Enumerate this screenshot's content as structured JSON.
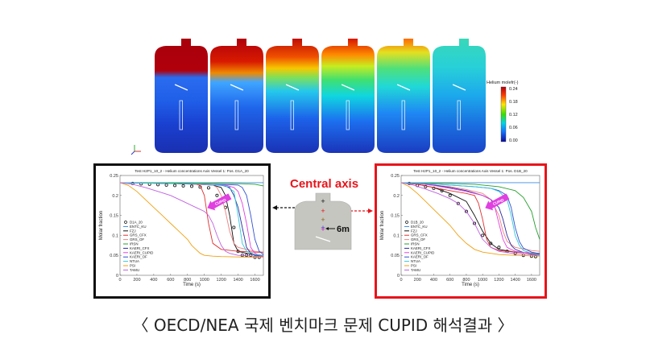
{
  "contours": {
    "count": 6,
    "colorbar": {
      "title": "Helium molefr(-)",
      "ticks": [
        "0.24",
        "0.18",
        "0.12",
        "0.06",
        "0.00"
      ],
      "colors": [
        "#b3000c",
        "#ff3b00",
        "#ffe600",
        "#38e000",
        "#00d5e6",
        "#1470ff",
        "#0b0b9c"
      ]
    }
  },
  "central_axis": {
    "title": "Central axis",
    "distance_label": "6m"
  },
  "caption": "〈 OECD/NEA 국제 벤치마크 문제 CUPID 해석결과 〉",
  "chart_data": [
    {
      "type": "line",
      "title": "Test H2P1_10_2 - Helium concentrations Axis Vessel 1: Pos. D1A_20",
      "xlabel": "Time (s)",
      "ylabel": "Molar fraction",
      "xlim": [
        0,
        1700
      ],
      "ylim": [
        0,
        0.25
      ],
      "xticks": [
        0,
        200,
        400,
        600,
        800,
        1000,
        1200,
        1400,
        1600
      ],
      "yticks": [
        0,
        0.05,
        0.1,
        0.15,
        0.2,
        0.25
      ],
      "xtick_labels": [
        "0",
        "200",
        "400",
        "600",
        "800",
        "1000",
        "1200",
        "1400",
        "1600"
      ],
      "ytick_labels": [
        "0",
        "0.05",
        "0.1",
        "0.15",
        "0.2",
        "0.25"
      ],
      "annotation": "CUPID",
      "legend_position": "left",
      "series": [
        {
          "name": "D1A_20",
          "color": "#000000",
          "marker": "circle",
          "x": [
            150,
            250,
            350,
            450,
            550,
            650,
            750,
            850,
            950,
            1050,
            1150,
            1250,
            1350,
            1400,
            1450,
            1500,
            1550,
            1600,
            1650
          ],
          "y": [
            0.23,
            0.229,
            0.228,
            0.227,
            0.226,
            0.225,
            0.224,
            0.223,
            0.221,
            0.219,
            0.2,
            0.17,
            0.12,
            0.06,
            0.05,
            0.05,
            0.05,
            0.045,
            0.045
          ]
        },
        {
          "name": "ENTC_KU",
          "color": "#3c8ce0",
          "x": [
            0,
            300,
            600,
            900,
            1200,
            1400,
            1500,
            1550,
            1600,
            1700
          ],
          "y": [
            0.232,
            0.232,
            0.232,
            0.232,
            0.232,
            0.232,
            0.232,
            0.232,
            0.232,
            0.232
          ]
        },
        {
          "name": "FZJ",
          "color": "#111111",
          "x": [
            0,
            300,
            600,
            900,
            1100,
            1200,
            1250,
            1300,
            1350,
            1400,
            1500,
            1600,
            1700
          ],
          "y": [
            0.232,
            0.231,
            0.23,
            0.228,
            0.226,
            0.22,
            0.2,
            0.15,
            0.08,
            0.06,
            0.055,
            0.052,
            0.05
          ]
        },
        {
          "name": "GRS_CFX",
          "color": "#e03030",
          "x": [
            0,
            300,
            600,
            800,
            900,
            950,
            1000,
            1050,
            1100,
            1200,
            1400,
            1600,
            1700
          ],
          "y": [
            0.232,
            0.231,
            0.23,
            0.229,
            0.228,
            0.225,
            0.2,
            0.13,
            0.08,
            0.065,
            0.06,
            0.058,
            0.057
          ]
        },
        {
          "name": "GRS_OF",
          "color": "#f08080",
          "x": [
            0,
            300,
            600,
            800,
            900,
            1000,
            1100,
            1150,
            1200,
            1250,
            1300,
            1350,
            1400,
            1500,
            1600,
            1700
          ],
          "y": [
            0.232,
            0.231,
            0.23,
            0.229,
            0.228,
            0.227,
            0.226,
            0.22,
            0.2,
            0.16,
            0.11,
            0.08,
            0.07,
            0.065,
            0.06,
            0.058
          ]
        },
        {
          "name": "IRSN",
          "color": "#22a02a",
          "x": [
            0,
            300,
            600,
            900,
            1100,
            1300,
            1500,
            1600,
            1650,
            1700
          ],
          "y": [
            0.232,
            0.232,
            0.232,
            0.231,
            0.231,
            0.23,
            0.229,
            0.228,
            0.226,
            0.224
          ]
        },
        {
          "name": "KAERI_CFX",
          "color": "#2a2aa0",
          "x": [
            0,
            300,
            600,
            900,
            1100,
            1200,
            1300,
            1350,
            1400,
            1450,
            1500,
            1550,
            1600,
            1700
          ],
          "y": [
            0.232,
            0.231,
            0.23,
            0.229,
            0.228,
            0.226,
            0.22,
            0.2,
            0.17,
            0.12,
            0.07,
            0.055,
            0.05,
            0.048
          ]
        },
        {
          "name": "KAERI_CUPID",
          "color": "#e040e0",
          "x": [
            0,
            300,
            600,
            900,
            1100,
            1250,
            1350,
            1400,
            1450,
            1500,
            1550,
            1600,
            1650,
            1700
          ],
          "y": [
            0.232,
            0.231,
            0.23,
            0.229,
            0.228,
            0.226,
            0.22,
            0.21,
            0.18,
            0.13,
            0.07,
            0.055,
            0.05,
            0.048
          ]
        },
        {
          "name": "KAERI_OF",
          "color": "#3050d0",
          "x": [
            0,
            300,
            600,
            900,
            1100,
            1300,
            1400,
            1450,
            1500,
            1550,
            1600,
            1650,
            1700
          ],
          "y": [
            0.232,
            0.231,
            0.23,
            0.229,
            0.228,
            0.227,
            0.226,
            0.22,
            0.2,
            0.15,
            0.09,
            0.06,
            0.052
          ]
        },
        {
          "name": "NTUA",
          "color": "#30c8d8",
          "x": [
            0,
            300,
            600,
            900,
            1100,
            1250,
            1350,
            1400,
            1450,
            1500,
            1600,
            1700
          ],
          "y": [
            0.232,
            0.231,
            0.23,
            0.229,
            0.227,
            0.224,
            0.21,
            0.15,
            0.08,
            0.06,
            0.052,
            0.05
          ]
        },
        {
          "name": "PSI",
          "color": "#f0a010",
          "x": [
            0,
            100,
            200,
            300,
            400,
            500,
            600,
            700,
            800,
            850,
            900,
            950,
            1000,
            1100,
            1200,
            1400,
            1600,
            1700
          ],
          "y": [
            0.232,
            0.225,
            0.21,
            0.19,
            0.17,
            0.15,
            0.13,
            0.11,
            0.09,
            0.075,
            0.065,
            0.055,
            0.05,
            0.048,
            0.047,
            0.046,
            0.045,
            0.045
          ]
        },
        {
          "name": "TAMU",
          "color": "#c060e0",
          "x": [
            0,
            150,
            300,
            450,
            600,
            750,
            900,
            1000,
            1050,
            1100,
            1150,
            1200,
            1250,
            1300,
            1400,
            1600,
            1700
          ],
          "y": [
            0.232,
            0.228,
            0.22,
            0.21,
            0.2,
            0.185,
            0.17,
            0.16,
            0.15,
            0.13,
            0.1,
            0.075,
            0.06,
            0.055,
            0.05,
            0.048,
            0.047
          ]
        }
      ]
    },
    {
      "type": "line",
      "title": "Test H2P1_10_2 - Helium concentrations Axis Vessel 1: Pos. D1B_20",
      "xlabel": "Time (s)",
      "ylabel": "Molar fraction",
      "xlim": [
        0,
        1700
      ],
      "ylim": [
        0,
        0.25
      ],
      "xticks": [
        0,
        200,
        400,
        600,
        800,
        1000,
        1200,
        1400,
        1600
      ],
      "yticks": [
        0,
        0.05,
        0.1,
        0.15,
        0.2,
        0.25
      ],
      "xtick_labels": [
        "0",
        "200",
        "400",
        "600",
        "800",
        "1000",
        "1200",
        "1400",
        "1600"
      ],
      "ytick_labels": [
        "0",
        "0.05",
        "0.1",
        "0.15",
        "0.2",
        "0.25"
      ],
      "annotation": "CUPID",
      "legend_position": "left",
      "series": [
        {
          "name": "D1B_20",
          "color": "#000000",
          "marker": "circle",
          "x": [
            100,
            200,
            300,
            400,
            500,
            600,
            700,
            800,
            900,
            1000,
            1100,
            1200,
            1300,
            1400,
            1500,
            1600,
            1650
          ],
          "y": [
            0.23,
            0.225,
            0.222,
            0.218,
            0.212,
            0.2,
            0.18,
            0.16,
            0.13,
            0.1,
            0.08,
            0.07,
            0.06,
            0.055,
            0.05,
            0.048,
            0.047
          ]
        },
        {
          "name": "ENTC_KU",
          "color": "#3c8ce0",
          "x": [
            0,
            300,
            600,
            900,
            1200,
            1500,
            1700
          ],
          "y": [
            0.232,
            0.232,
            0.232,
            0.232,
            0.232,
            0.232,
            0.232
          ]
        },
        {
          "name": "FZJ",
          "color": "#111111",
          "x": [
            0,
            200,
            400,
            600,
            800,
            900,
            1000,
            1100,
            1200,
            1400,
            1600,
            1700
          ],
          "y": [
            0.232,
            0.228,
            0.22,
            0.205,
            0.185,
            0.15,
            0.11,
            0.08,
            0.065,
            0.058,
            0.055,
            0.053
          ]
        },
        {
          "name": "GRS_CFX",
          "color": "#e03030",
          "x": [
            0,
            200,
            400,
            600,
            800,
            900,
            950,
            1000,
            1050,
            1100,
            1200,
            1400,
            1600,
            1700
          ],
          "y": [
            0.232,
            0.228,
            0.22,
            0.212,
            0.205,
            0.2,
            0.18,
            0.14,
            0.09,
            0.07,
            0.062,
            0.058,
            0.056,
            0.055
          ]
        },
        {
          "name": "GRS_OF",
          "color": "#f08080",
          "x": [
            0,
            200,
            400,
            600,
            800,
            1000,
            1100,
            1200,
            1250,
            1300,
            1400,
            1600,
            1700
          ],
          "y": [
            0.232,
            0.23,
            0.226,
            0.222,
            0.215,
            0.205,
            0.19,
            0.15,
            0.11,
            0.085,
            0.07,
            0.062,
            0.06
          ]
        },
        {
          "name": "IRSN",
          "color": "#22a02a",
          "x": [
            0,
            300,
            600,
            900,
            1200,
            1400,
            1500,
            1600,
            1650,
            1700
          ],
          "y": [
            0.232,
            0.231,
            0.23,
            0.228,
            0.222,
            0.212,
            0.195,
            0.16,
            0.12,
            0.09
          ]
        },
        {
          "name": "KAERI_CFX",
          "color": "#2a2aa0",
          "x": [
            0,
            200,
            400,
            600,
            800,
            1000,
            1100,
            1200,
            1250,
            1300,
            1350,
            1400,
            1500,
            1600,
            1700
          ],
          "y": [
            0.232,
            0.23,
            0.226,
            0.22,
            0.212,
            0.2,
            0.19,
            0.17,
            0.14,
            0.1,
            0.075,
            0.065,
            0.057,
            0.053,
            0.05
          ]
        },
        {
          "name": "KAERI_CUPID",
          "color": "#e040e0",
          "x": [
            0,
            200,
            400,
            600,
            800,
            1000,
            1100,
            1150,
            1200,
            1250,
            1300,
            1400,
            1600,
            1700
          ],
          "y": [
            0.232,
            0.23,
            0.225,
            0.218,
            0.21,
            0.2,
            0.19,
            0.17,
            0.13,
            0.09,
            0.07,
            0.06,
            0.054,
            0.052
          ]
        },
        {
          "name": "KAERI_OF",
          "color": "#3050d0",
          "x": [
            0,
            300,
            600,
            900,
            1100,
            1200,
            1300,
            1350,
            1400,
            1450,
            1500,
            1600,
            1700
          ],
          "y": [
            0.232,
            0.23,
            0.226,
            0.222,
            0.218,
            0.212,
            0.2,
            0.17,
            0.12,
            0.085,
            0.068,
            0.058,
            0.054
          ]
        },
        {
          "name": "NTUA",
          "color": "#30c8d8",
          "x": [
            0,
            300,
            600,
            900,
            1100,
            1200,
            1300,
            1350,
            1400,
            1450,
            1500,
            1600,
            1700
          ],
          "y": [
            0.232,
            0.23,
            0.226,
            0.222,
            0.218,
            0.21,
            0.19,
            0.15,
            0.1,
            0.075,
            0.062,
            0.055,
            0.052
          ]
        },
        {
          "name": "PSI",
          "color": "#f0a010",
          "x": [
            0,
            100,
            200,
            300,
            400,
            500,
            600,
            700,
            800,
            900,
            1000,
            1200,
            1400,
            1700
          ],
          "y": [
            0.232,
            0.222,
            0.205,
            0.185,
            0.165,
            0.145,
            0.125,
            0.1,
            0.08,
            0.065,
            0.058,
            0.052,
            0.05,
            0.048
          ]
        },
        {
          "name": "TAMU",
          "color": "#c060e0",
          "x": [
            0,
            150,
            300,
            450,
            600,
            700,
            800,
            900,
            950,
            1000,
            1100,
            1200,
            1400,
            1700
          ],
          "y": [
            0.232,
            0.226,
            0.216,
            0.205,
            0.192,
            0.18,
            0.16,
            0.13,
            0.11,
            0.09,
            0.07,
            0.06,
            0.054,
            0.05
          ]
        }
      ]
    }
  ]
}
